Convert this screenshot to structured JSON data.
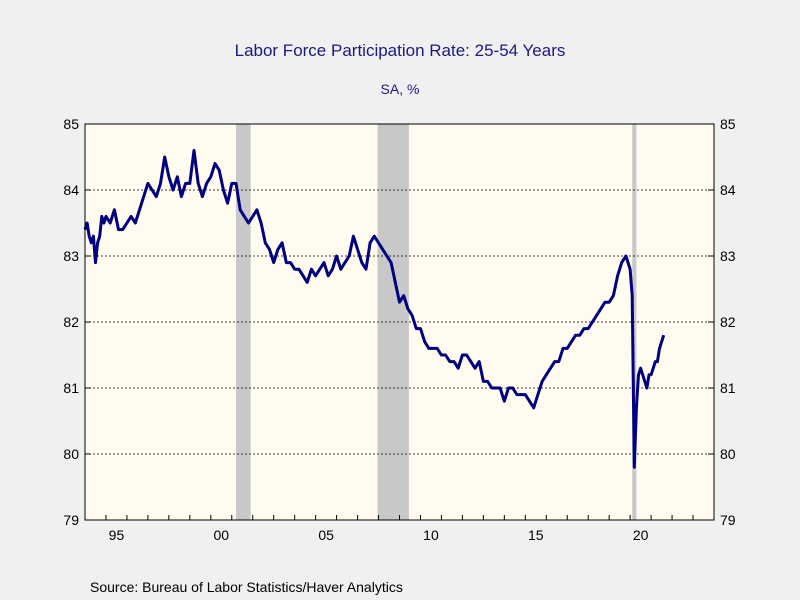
{
  "chart_data": {
    "type": "line",
    "title": "Labor Force Participation Rate: 25-54 Years",
    "subtitle": "SA, %",
    "source": "Source:  Bureau of Labor Statistics/Haver Analytics",
    "ylim": [
      79,
      85
    ],
    "xlim": [
      1994.0,
      2024.0
    ],
    "y_ticks": [
      79,
      80,
      81,
      82,
      83,
      84,
      85
    ],
    "y_tick_labels": [
      "79",
      "80",
      "81",
      "82",
      "83",
      "84",
      "85"
    ],
    "x_tick_labels": [
      {
        "year": 1995,
        "label": "95"
      },
      {
        "year": 2000,
        "label": "00"
      },
      {
        "year": 2005,
        "label": "05"
      },
      {
        "year": 2010,
        "label": "10"
      },
      {
        "year": 2015,
        "label": "15"
      },
      {
        "year": 2020,
        "label": "20"
      }
    ],
    "grid": true,
    "colors": {
      "line": "#000080",
      "plot_bg": "#fffbee",
      "recession": "#c8c8c8",
      "page_bg": "#f0f0f0",
      "title": "#1a1a80"
    },
    "recessions": [
      {
        "start": 2001.2,
        "end": 2001.9
      },
      {
        "start": 2007.95,
        "end": 2009.45
      },
      {
        "start": 2020.1,
        "end": 2020.3
      }
    ],
    "series": [
      {
        "x": [
          1994.0,
          1994.1,
          1994.2,
          1994.3,
          1994.4,
          1994.5,
          1994.6,
          1994.7,
          1994.8,
          1994.9,
          1995.0,
          1995.2,
          1995.4,
          1995.6,
          1995.8,
          1996.0,
          1996.2,
          1996.4,
          1996.6,
          1996.8,
          1997.0,
          1997.2,
          1997.4,
          1997.6,
          1997.8,
          1998.0,
          1998.2,
          1998.4,
          1998.6,
          1998.8,
          1999.0,
          1999.2,
          1999.4,
          1999.6,
          1999.8,
          2000.0,
          2000.2,
          2000.4,
          2000.6,
          2000.8,
          2001.0,
          2001.2,
          2001.4,
          2001.6,
          2001.8,
          2002.0,
          2002.2,
          2002.4,
          2002.6,
          2002.8,
          2003.0,
          2003.2,
          2003.4,
          2003.6,
          2003.8,
          2004.0,
          2004.2,
          2004.4,
          2004.6,
          2004.8,
          2005.0,
          2005.2,
          2005.4,
          2005.6,
          2005.8,
          2006.0,
          2006.2,
          2006.4,
          2006.6,
          2006.8,
          2007.0,
          2007.2,
          2007.4,
          2007.6,
          2007.8,
          2008.0,
          2008.2,
          2008.4,
          2008.6,
          2008.8,
          2009.0,
          2009.2,
          2009.4,
          2009.6,
          2009.8,
          2010.0,
          2010.2,
          2010.4,
          2010.6,
          2010.8,
          2011.0,
          2011.2,
          2011.4,
          2011.6,
          2011.8,
          2012.0,
          2012.2,
          2012.4,
          2012.6,
          2012.8,
          2013.0,
          2013.2,
          2013.4,
          2013.6,
          2013.8,
          2014.0,
          2014.2,
          2014.4,
          2014.6,
          2014.8,
          2015.0,
          2015.2,
          2015.4,
          2015.6,
          2015.8,
          2016.0,
          2016.2,
          2016.4,
          2016.6,
          2016.8,
          2017.0,
          2017.2,
          2017.4,
          2017.6,
          2017.8,
          2018.0,
          2018.2,
          2018.4,
          2018.6,
          2018.8,
          2019.0,
          2019.2,
          2019.4,
          2019.6,
          2019.8,
          2020.0,
          2020.1,
          2020.2,
          2020.3,
          2020.4,
          2020.5,
          2020.6,
          2020.7,
          2020.8,
          2020.9,
          2021.0,
          2021.1,
          2021.2,
          2021.3,
          2021.4,
          2021.5,
          2021.6
        ],
        "values": [
          83.4,
          83.5,
          83.3,
          83.2,
          83.3,
          82.9,
          83.2,
          83.3,
          83.6,
          83.5,
          83.6,
          83.5,
          83.7,
          83.4,
          83.4,
          83.5,
          83.6,
          83.5,
          83.7,
          83.9,
          84.1,
          84.0,
          83.9,
          84.1,
          84.5,
          84.2,
          84.0,
          84.2,
          83.9,
          84.1,
          84.1,
          84.6,
          84.1,
          83.9,
          84.1,
          84.2,
          84.4,
          84.3,
          84.0,
          83.8,
          84.1,
          84.1,
          83.7,
          83.6,
          83.5,
          83.6,
          83.7,
          83.5,
          83.2,
          83.1,
          82.9,
          83.1,
          83.2,
          82.9,
          82.9,
          82.8,
          82.8,
          82.7,
          82.6,
          82.8,
          82.7,
          82.8,
          82.9,
          82.7,
          82.8,
          83.0,
          82.8,
          82.9,
          83.0,
          83.3,
          83.1,
          82.9,
          82.8,
          83.2,
          83.3,
          83.2,
          83.1,
          83.0,
          82.9,
          82.6,
          82.3,
          82.4,
          82.2,
          82.1,
          81.9,
          81.9,
          81.7,
          81.6,
          81.6,
          81.6,
          81.5,
          81.5,
          81.4,
          81.4,
          81.3,
          81.5,
          81.5,
          81.4,
          81.3,
          81.4,
          81.1,
          81.1,
          81.0,
          81.0,
          81.0,
          80.8,
          81.0,
          81.0,
          80.9,
          80.9,
          80.9,
          80.8,
          80.7,
          80.9,
          81.1,
          81.2,
          81.3,
          81.4,
          81.4,
          81.6,
          81.6,
          81.7,
          81.8,
          81.8,
          81.9,
          81.9,
          82.0,
          82.1,
          82.2,
          82.3,
          82.3,
          82.4,
          82.7,
          82.9,
          83.0,
          82.8,
          82.4,
          79.8,
          80.7,
          81.2,
          81.3,
          81.2,
          81.1,
          81.0,
          81.2,
          81.2,
          81.3,
          81.4,
          81.4,
          81.6,
          81.7,
          81.8
        ]
      }
    ]
  }
}
